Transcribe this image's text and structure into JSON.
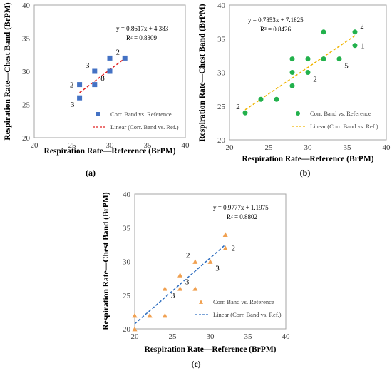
{
  "chart_data": [
    {
      "panel_label": "(a)",
      "type": "scatter",
      "xlabel": "Respiration Rate—Reference (BrPM)",
      "ylabel": "Respiration Rate—Chest Band (BrPM)",
      "xlim": [
        20,
        40
      ],
      "ylim": [
        20,
        40
      ],
      "xticks": [
        "20",
        "25",
        "30",
        "35",
        "40"
      ],
      "yticks": [
        "20",
        "25",
        "30",
        "35",
        "40"
      ],
      "marker": "square",
      "color": "#4472c4",
      "trend_color": "#e02020",
      "points": [
        {
          "x": 26,
          "y": 26
        },
        {
          "x": 26,
          "y": 28
        },
        {
          "x": 28,
          "y": 28
        },
        {
          "x": 28,
          "y": 30
        },
        {
          "x": 30,
          "y": 30
        },
        {
          "x": 30,
          "y": 32
        },
        {
          "x": 32,
          "y": 32
        }
      ],
      "point_labels": [
        {
          "x": 26,
          "y": 28,
          "text": "2",
          "pos": "left"
        },
        {
          "x": 26,
          "y": 26,
          "text": "3",
          "pos": "below-left"
        },
        {
          "x": 28,
          "y": 30,
          "text": "3",
          "pos": "above-left"
        },
        {
          "x": 30,
          "y": 30,
          "text": "8",
          "pos": "below-left"
        },
        {
          "x": 32,
          "y": 32,
          "text": "2",
          "pos": "above-left"
        }
      ],
      "trendline": {
        "slope": 0.8617,
        "intercept": 4.383,
        "x_range": [
          26,
          32
        ]
      },
      "equation": "y = 0.8617x + 4.383",
      "r2": "R² = 0.8309",
      "legend": {
        "series": "Corr. Band vs. Reference",
        "trend": "Linear (Corr. Band vs. Ref.)",
        "placement": "bottom-right"
      }
    },
    {
      "panel_label": "(b)",
      "type": "scatter",
      "xlabel": "Respiration Rate—Reference (BrPM)",
      "ylabel": "Respiration Rate—Chest Band (BrPM)",
      "xlim": [
        20,
        40
      ],
      "ylim": [
        20,
        40
      ],
      "xticks": [
        "20",
        "25",
        "30",
        "35",
        "40"
      ],
      "yticks": [
        "20",
        "25",
        "30",
        "35",
        "40"
      ],
      "marker": "circle",
      "color": "#22b14c",
      "trend_color": "#f0b400",
      "points": [
        {
          "x": 22,
          "y": 24
        },
        {
          "x": 24,
          "y": 26
        },
        {
          "x": 26,
          "y": 26
        },
        {
          "x": 28,
          "y": 28
        },
        {
          "x": 28,
          "y": 30
        },
        {
          "x": 28,
          "y": 32
        },
        {
          "x": 30,
          "y": 30
        },
        {
          "x": 30,
          "y": 32
        },
        {
          "x": 32,
          "y": 32
        },
        {
          "x": 32,
          "y": 36
        },
        {
          "x": 34,
          "y": 32
        },
        {
          "x": 36,
          "y": 34
        },
        {
          "x": 36,
          "y": 36
        }
      ],
      "point_labels": [
        {
          "x": 22,
          "y": 24,
          "text": "2",
          "pos": "above-left"
        },
        {
          "x": 30,
          "y": 30,
          "text": "2",
          "pos": "below-right"
        },
        {
          "x": 34,
          "y": 32,
          "text": "5",
          "pos": "below-right"
        },
        {
          "x": 36,
          "y": 34,
          "text": "1",
          "pos": "right"
        },
        {
          "x": 36,
          "y": 36,
          "text": "2",
          "pos": "above-right"
        }
      ],
      "trendline": {
        "slope": 0.7853,
        "intercept": 7.1825,
        "x_range": [
          22,
          36
        ]
      },
      "equation": "y = 0.7853x + 7.1825",
      "r2": "R² = 0.8426",
      "legend": {
        "series": "Corr. Band vs. Reference",
        "trend": "Linear (Corr. Band vs. Ref.)",
        "placement": "bottom-right"
      }
    },
    {
      "panel_label": "(c)",
      "type": "scatter",
      "xlabel": "Respiration Rate—Reference (BrPM)",
      "ylabel": "Respiration Rate—Chest Band (BrPM)",
      "xlim": [
        20,
        40
      ],
      "ylim": [
        20,
        40
      ],
      "xticks": [
        "20",
        "25",
        "30",
        "35",
        "40"
      ],
      "yticks": [
        "20",
        "25",
        "30",
        "35",
        "40"
      ],
      "marker": "triangle",
      "color": "#f0a050",
      "trend_color": "#2e6ec0",
      "points": [
        {
          "x": 20,
          "y": 20
        },
        {
          "x": 20,
          "y": 22
        },
        {
          "x": 22,
          "y": 22
        },
        {
          "x": 24,
          "y": 22
        },
        {
          "x": 24,
          "y": 26
        },
        {
          "x": 26,
          "y": 26
        },
        {
          "x": 26,
          "y": 28
        },
        {
          "x": 28,
          "y": 26
        },
        {
          "x": 28,
          "y": 30
        },
        {
          "x": 30,
          "y": 30
        },
        {
          "x": 32,
          "y": 32
        },
        {
          "x": 32,
          "y": 34
        }
      ],
      "point_labels": [
        {
          "x": 26,
          "y": 28,
          "text": "3",
          "pos": "below-right"
        },
        {
          "x": 26,
          "y": 26,
          "text": "3",
          "pos": "below-left"
        },
        {
          "x": 28,
          "y": 30,
          "text": "2",
          "pos": "above-left"
        },
        {
          "x": 30,
          "y": 30,
          "text": "3",
          "pos": "below-right"
        },
        {
          "x": 32,
          "y": 32,
          "text": "2",
          "pos": "right"
        }
      ],
      "trendline": {
        "slope": 0.9777,
        "intercept": 1.1975,
        "x_range": [
          20,
          32
        ]
      },
      "equation": "y = 0.9777x + 1.1975",
      "r2": "R² = 0.8802",
      "legend": {
        "series": "Corr. Band vs. Reference",
        "trend": "Linear (Corr. Band vs. Ref.)",
        "placement": "bottom-right"
      }
    }
  ]
}
